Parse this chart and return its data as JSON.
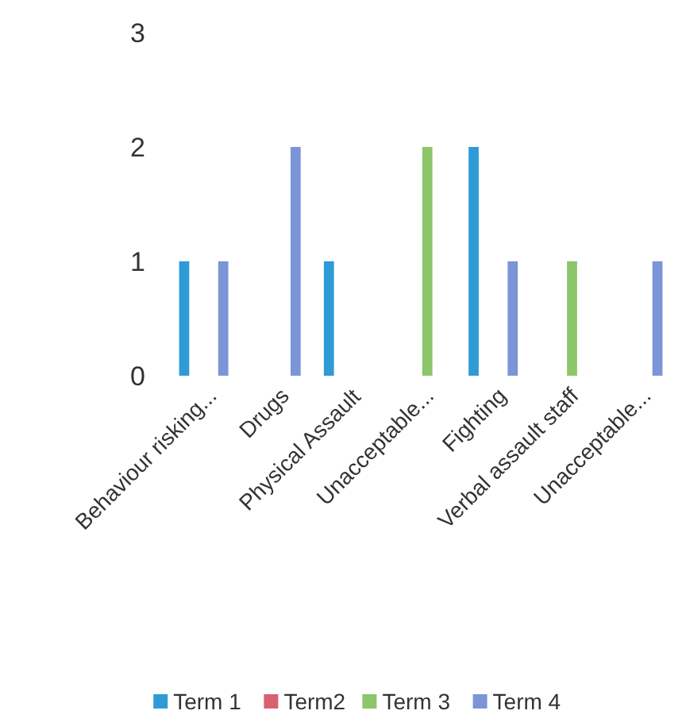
{
  "chart_data": {
    "type": "bar",
    "categories": [
      "Behaviour risking...",
      "Drugs",
      "Physical Assault",
      "Unacceptable...",
      "Fighting",
      "Verbal assault staff",
      "Unacceptable..."
    ],
    "series": [
      {
        "name": "Term 1",
        "color": "#2e9bd6",
        "values": [
          1,
          null,
          1,
          null,
          2,
          null,
          null
        ]
      },
      {
        "name": "Term2",
        "color": "#d9606e",
        "values": [
          null,
          null,
          null,
          null,
          null,
          null,
          null
        ]
      },
      {
        "name": "Term 3",
        "color": "#8cc56a",
        "values": [
          null,
          null,
          null,
          2,
          null,
          1,
          null
        ]
      },
      {
        "name": "Term 4",
        "color": "#7b95d6",
        "values": [
          1,
          2,
          null,
          null,
          1,
          null,
          1
        ]
      }
    ],
    "ylim": [
      0,
      3
    ],
    "yticks": [
      0,
      1,
      2,
      3
    ],
    "grid": false,
    "legend": "bottom"
  }
}
